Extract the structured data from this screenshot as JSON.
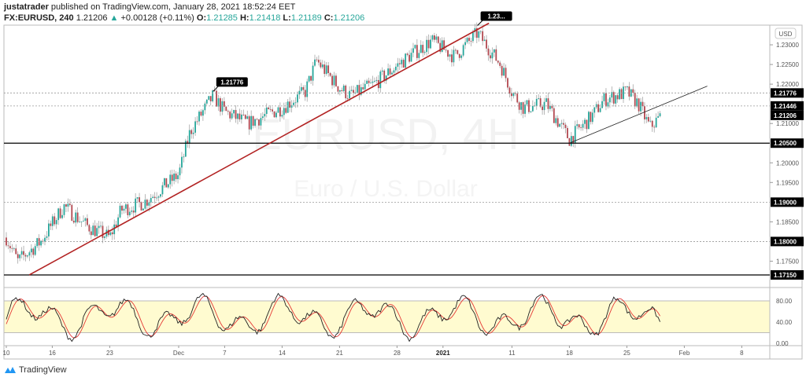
{
  "header": {
    "publisher": "justatrader",
    "published_text": "published on TradingView.com, January 28, 2021 18:52:24 EET",
    "symbol": "FX:EURUSD, 240",
    "last": "1.21206",
    "change": "+0.00128 (+0.11%)",
    "o_label": "O:",
    "o": "1.21285",
    "h_label": "H:",
    "h": "1.21418",
    "l_label": "L:",
    "l": "1.21189",
    "c_label": "C:",
    "c": "1.21206"
  },
  "watermark": {
    "symbol": "EURUSD, 4H",
    "description": "Euro / U.S. Dollar"
  },
  "currency": "USD",
  "footer": {
    "brand": "TradingView"
  },
  "colors": {
    "up": "#26a69a",
    "down": "#b2474f",
    "trend": "#b22222",
    "band": "#fffbd0",
    "k": "#222222",
    "d": "#e53935"
  },
  "chart_data": {
    "type": "candlestick",
    "timeframe": "4H",
    "ylim": [
      1.1685,
      1.235
    ],
    "y_ticks": [
      "1.23000",
      "1.22500",
      "1.22000",
      "1.21000",
      "1.20000",
      "1.19500",
      "1.18500",
      "1.17500"
    ],
    "x_ticks": [
      {
        "date": "2020-11-10",
        "label": "10"
      },
      {
        "date": "2020-11-16",
        "label": "16"
      },
      {
        "date": "2020-11-23",
        "label": "23"
      },
      {
        "date": "2020-12-01",
        "label": "Dec"
      },
      {
        "date": "2020-12-07",
        "label": "7"
      },
      {
        "date": "2020-12-14",
        "label": "14"
      },
      {
        "date": "2020-12-21",
        "label": "21"
      },
      {
        "date": "2020-12-28",
        "label": "28"
      },
      {
        "date": "2021-01-01",
        "label": "2021"
      },
      {
        "date": "2021-01-11",
        "label": "11"
      },
      {
        "date": "2021-01-18",
        "label": "18"
      },
      {
        "date": "2021-01-25",
        "label": "25"
      },
      {
        "date": "2021-02-01",
        "label": "Feb"
      },
      {
        "date": "2021-02-08",
        "label": "8"
      }
    ],
    "approx_close_path": [
      [
        "2020-11-10",
        1.181
      ],
      [
        "2020-11-11",
        1.175
      ],
      [
        "2020-11-13",
        1.18
      ],
      [
        "2020-11-17",
        1.189
      ],
      [
        "2020-11-19",
        1.184
      ],
      [
        "2020-11-23",
        1.181
      ],
      [
        "2020-11-24",
        1.188
      ],
      [
        "2020-11-26",
        1.19
      ],
      [
        "2020-12-01",
        1.197
      ],
      [
        "2020-12-02",
        1.208
      ],
      [
        "2020-12-04",
        1.217
      ],
      [
        "2020-12-07",
        1.213
      ],
      [
        "2020-12-09",
        1.21
      ],
      [
        "2020-12-14",
        1.214
      ],
      [
        "2020-12-16",
        1.218
      ],
      [
        "2020-12-17",
        1.226
      ],
      [
        "2020-12-21",
        1.219
      ],
      [
        "2020-12-22",
        1.217
      ],
      [
        "2020-12-24",
        1.22
      ],
      [
        "2020-12-29",
        1.227
      ],
      [
        "2020-12-31",
        1.231
      ],
      [
        "2021-01-04",
        1.227
      ],
      [
        "2021-01-06",
        1.233
      ],
      [
        "2021-01-08",
        1.225
      ],
      [
        "2021-01-11",
        1.218
      ],
      [
        "2021-01-12",
        1.214
      ],
      [
        "2021-01-14",
        1.215
      ],
      [
        "2021-01-18",
        1.206
      ],
      [
        "2021-01-20",
        1.212
      ],
      [
        "2021-01-21",
        1.216
      ],
      [
        "2021-01-25",
        1.218
      ],
      [
        "2021-01-26",
        1.215
      ],
      [
        "2021-01-27",
        1.209
      ],
      [
        "2021-01-28",
        1.212
      ]
    ],
    "levels": [
      {
        "price": 1.21776,
        "label": "1.21776",
        "style": "dotted"
      },
      {
        "price": 1.21446,
        "label": "1.21446",
        "style": "dotted"
      },
      {
        "price": 1.21206,
        "label": "1.21206",
        "style": "last"
      },
      {
        "price": 1.205,
        "label": "1.20500",
        "style": "solid"
      },
      {
        "price": 1.19,
        "label": "1.19000",
        "style": "dotted"
      },
      {
        "price": 1.18,
        "label": "1.18000",
        "style": "dotted"
      },
      {
        "price": 1.1715,
        "label": "1.17150",
        "style": "solid"
      }
    ],
    "callouts": [
      {
        "date": "2020-12-04",
        "price": 1.21776,
        "label": "1.21776"
      },
      {
        "date": "2021-01-06",
        "price": 1.2345,
        "label": "1.23..."
      }
    ],
    "trendlines": [
      {
        "from": [
          "2020-11-12",
          1.1715
        ],
        "to": [
          "2021-01-07",
          1.2355
        ],
        "color": "#b22222"
      },
      {
        "from": [
          "2021-01-18",
          1.205
        ],
        "to": [
          "2021-02-03",
          1.2195
        ],
        "color": "#222222"
      }
    ],
    "oscillator": {
      "type": "stochastic",
      "ylim": [
        0,
        100
      ],
      "band": [
        20,
        80
      ],
      "ticks": [
        "80.00",
        "40.00",
        "0.00"
      ]
    }
  }
}
